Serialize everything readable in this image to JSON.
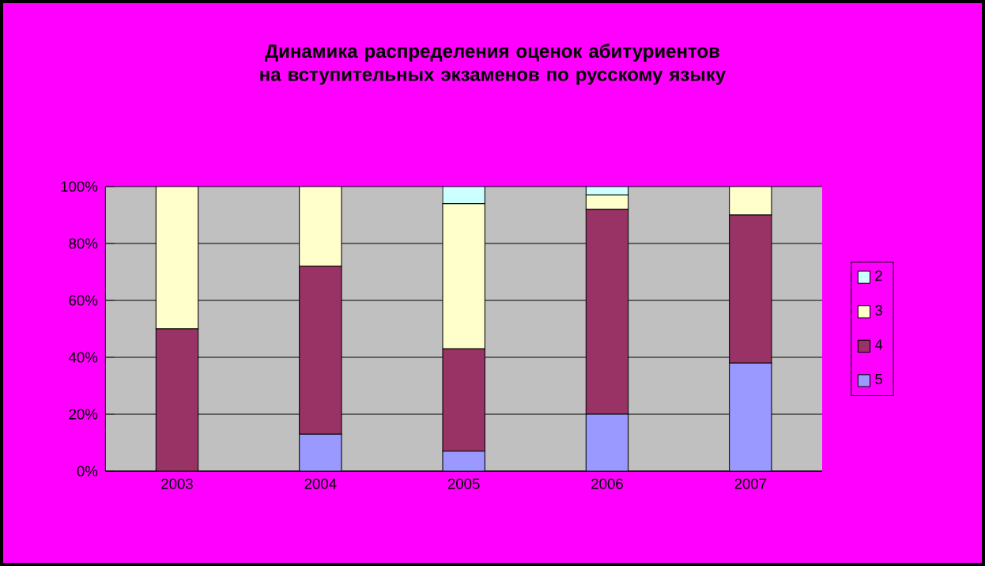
{
  "chart_data": {
    "type": "bar",
    "stacked": true,
    "title": "Динамика распределения оценок абитуриентов на вступительных экзаменов по русскому языку",
    "categories": [
      "2003",
      "2004",
      "2005",
      "2006",
      "2007"
    ],
    "series": [
      {
        "name": "5",
        "color": "#9999ff",
        "values": [
          0,
          13,
          7,
          20,
          38
        ]
      },
      {
        "name": "4",
        "color": "#993366",
        "values": [
          50,
          59,
          36,
          72,
          52
        ]
      },
      {
        "name": "3",
        "color": "#ffffcc",
        "values": [
          50,
          28,
          51,
          5,
          10
        ]
      },
      {
        "name": "2",
        "color": "#ccffff",
        "values": [
          0,
          0,
          6,
          3,
          0
        ]
      }
    ],
    "ylim": [
      0,
      100
    ],
    "yticks": [
      {
        "value": 0,
        "label": "0%"
      },
      {
        "value": 20,
        "label": "20%"
      },
      {
        "value": 40,
        "label": "40%"
      },
      {
        "value": 60,
        "label": "60%"
      },
      {
        "value": 80,
        "label": "80%"
      },
      {
        "value": 100,
        "label": "100%"
      }
    ],
    "grid": "y",
    "legend": "right"
  }
}
